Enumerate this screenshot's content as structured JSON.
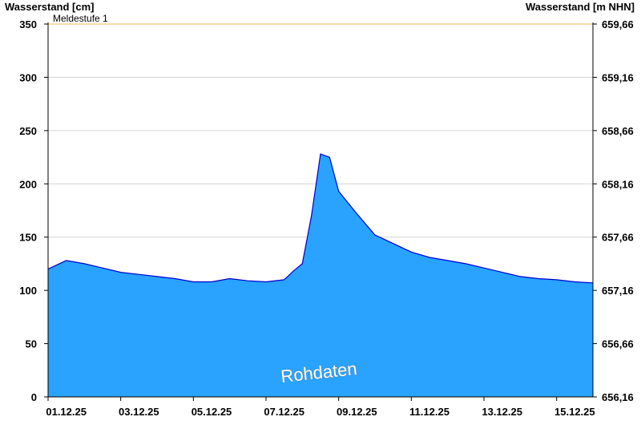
{
  "chart_data": {
    "type": "area",
    "ylabel_left": "Wasserstand [cm]",
    "ylabel_right": "Wasserstand [m NHN]",
    "ylim": [
      0,
      350
    ],
    "yticks_left": [
      0,
      50,
      100,
      150,
      200,
      250,
      300,
      350
    ],
    "yticks_right": [
      "656,16",
      "656,66",
      "657,16",
      "657,66",
      "658,16",
      "658,66",
      "659,16",
      "659,66"
    ],
    "xlim": [
      "01.12.25",
      "16.12.25"
    ],
    "xticks": [
      "01.12.25",
      "03.12.25",
      "05.12.25",
      "07.12.25",
      "09.12.25",
      "11.12.25",
      "13.12.25",
      "15.12.25"
    ],
    "threshold": {
      "label": "Meldestufe 1",
      "value": 350,
      "color": "#f5c87a"
    },
    "watermark": "Rohdaten",
    "fill_color": "#29a3ff",
    "line_color": "#0000cc",
    "grid": true,
    "series": [
      {
        "x": [
          "01.12.25 00:00",
          "01.12.25 12:00",
          "02.12.25 00:00",
          "02.12.25 12:00",
          "03.12.25 00:00",
          "03.12.25 12:00",
          "04.12.25 00:00",
          "04.12.25 12:00",
          "05.12.25 00:00",
          "05.12.25 12:00",
          "06.12.25 00:00",
          "06.12.25 12:00",
          "07.12.25 00:00",
          "07.12.25 12:00",
          "07.12.25 18:00",
          "08.12.25 00:00",
          "08.12.25 06:00",
          "08.12.25 12:00",
          "08.12.25 18:00",
          "09.12.25 00:00",
          "09.12.25 12:00",
          "10.12.25 00:00",
          "10.12.25 12:00",
          "11.12.25 00:00",
          "11.12.25 12:00",
          "12.12.25 00:00",
          "12.12.25 12:00",
          "13.12.25 00:00",
          "13.12.25 12:00",
          "14.12.25 00:00",
          "14.12.25 12:00",
          "15.12.25 00:00",
          "15.12.25 12:00",
          "16.12.25 00:00"
        ],
        "values": [
          120,
          128,
          125,
          121,
          117,
          115,
          113,
          111,
          108,
          108,
          111,
          109,
          108,
          110,
          118,
          125,
          170,
          228,
          225,
          193,
          172,
          152,
          144,
          136,
          131,
          128,
          125,
          121,
          117,
          113,
          111,
          110,
          108,
          107
        ]
      }
    ]
  }
}
